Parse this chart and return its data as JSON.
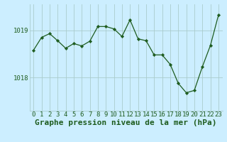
{
  "x": [
    0,
    1,
    2,
    3,
    4,
    5,
    6,
    7,
    8,
    9,
    10,
    11,
    12,
    13,
    14,
    15,
    16,
    17,
    18,
    19,
    20,
    21,
    22,
    23
  ],
  "y": [
    1018.58,
    1018.85,
    1018.93,
    1018.78,
    1018.62,
    1018.72,
    1018.67,
    1018.77,
    1019.08,
    1019.08,
    1019.03,
    1018.87,
    1019.22,
    1018.82,
    1018.78,
    1018.48,
    1018.48,
    1018.28,
    1017.88,
    1017.68,
    1017.73,
    1018.23,
    1018.68,
    1019.32
  ],
  "line_color": "#1e5c1e",
  "marker_color": "#1e5c1e",
  "bg_color": "#cceeff",
  "grid_color": "#aacccc",
  "xlabel": "Graphe pression niveau de la mer (hPa)",
  "yticks": [
    1018,
    1019
  ],
  "xlim": [
    -0.5,
    23.5
  ],
  "ylim": [
    1017.3,
    1019.55
  ],
  "tick_color": "#1e5c1e",
  "tick_fontsize": 6.5,
  "xlabel_fontsize": 8.0
}
